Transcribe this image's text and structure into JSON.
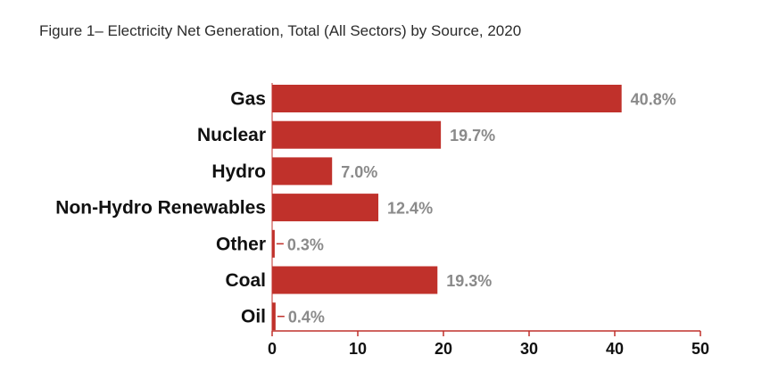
{
  "chart_data": {
    "type": "bar",
    "orientation": "horizontal",
    "title": "Figure 1– Electricity Net Generation, Total (All Sectors) by Source, 2020",
    "categories": [
      "Gas",
      "Nuclear",
      "Hydro",
      "Non-Hydro Renewables",
      "Other",
      "Coal",
      "Oil"
    ],
    "values": [
      40.8,
      19.7,
      7.0,
      12.4,
      0.3,
      19.3,
      0.4
    ],
    "value_labels": [
      "40.8%",
      "19.7%",
      "7.0%",
      "12.4%",
      "0.3%",
      "19.3%",
      "0.4%"
    ],
    "xlim": [
      0,
      50
    ],
    "xticks": [
      0,
      10,
      20,
      30,
      40,
      50
    ],
    "grid": false,
    "bar_color": "#c0312b",
    "axis_color": "#c0312b",
    "value_label_color": "#8a8a8a"
  }
}
